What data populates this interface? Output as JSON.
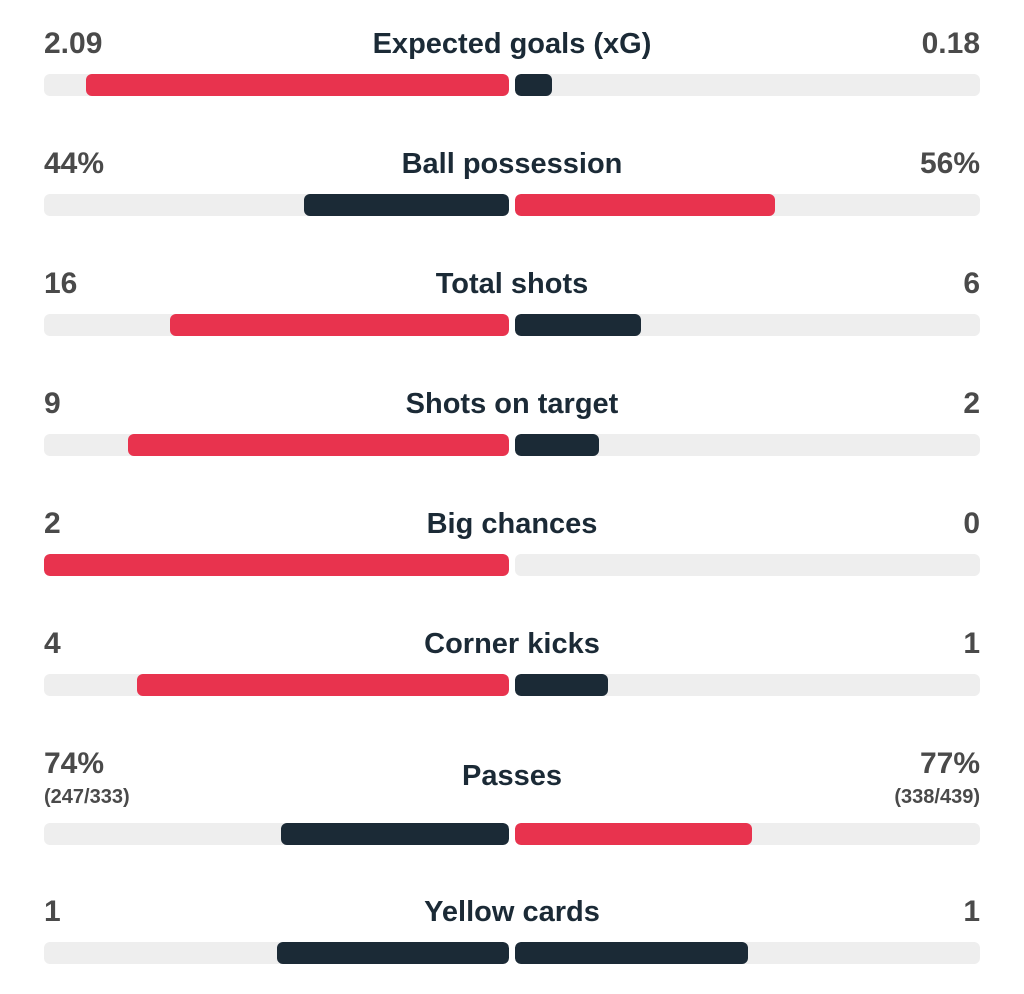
{
  "colors": {
    "red": "#e8334e",
    "dark": "#1b2a36",
    "track": "#eeeeee"
  },
  "stats": [
    {
      "label": "Expected goals (xG)",
      "home": "2.09",
      "away": "0.18",
      "home_fill": 0.91,
      "away_fill": 0.08,
      "home_color": "red",
      "away_color": "dark"
    },
    {
      "label": "Ball possession",
      "home": "44%",
      "away": "56%",
      "home_fill": 0.44,
      "away_fill": 0.56,
      "home_color": "dark",
      "away_color": "red"
    },
    {
      "label": "Total shots",
      "home": "16",
      "away": "6",
      "home_fill": 0.73,
      "away_fill": 0.27,
      "home_color": "red",
      "away_color": "dark"
    },
    {
      "label": "Shots on target",
      "home": "9",
      "away": "2",
      "home_fill": 0.82,
      "away_fill": 0.18,
      "home_color": "red",
      "away_color": "dark"
    },
    {
      "label": "Big chances",
      "home": "2",
      "away": "0",
      "home_fill": 1.0,
      "away_fill": 0.0,
      "home_color": "red",
      "away_color": "dark"
    },
    {
      "label": "Corner kicks",
      "home": "4",
      "away": "1",
      "home_fill": 0.8,
      "away_fill": 0.2,
      "home_color": "red",
      "away_color": "dark"
    },
    {
      "label": "Passes",
      "home": "74%",
      "home_sub": "(247/333)",
      "away": "77%",
      "away_sub": "(338/439)",
      "home_fill": 0.49,
      "away_fill": 0.51,
      "home_color": "dark",
      "away_color": "red"
    },
    {
      "label": "Yellow cards",
      "home": "1",
      "away": "1",
      "home_fill": 0.5,
      "away_fill": 0.5,
      "home_color": "dark",
      "away_color": "dark"
    }
  ]
}
